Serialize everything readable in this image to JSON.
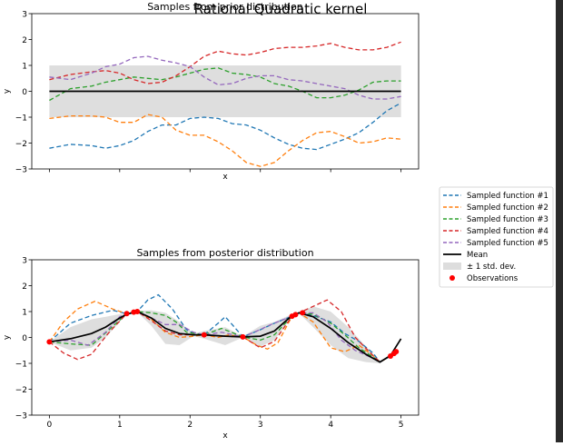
{
  "suptitle": "Rational Quadratic kernel",
  "legend": {
    "placement": "right, between panels",
    "entries": [
      {
        "label": "Sampled function #1",
        "kind": "dashed",
        "color": "#1f77b4"
      },
      {
        "label": "Sampled function #2",
        "kind": "dashed",
        "color": "#ff7f0e"
      },
      {
        "label": "Sampled function #3",
        "kind": "dashed",
        "color": "#2ca02c"
      },
      {
        "label": "Sampled function #4",
        "kind": "dashed",
        "color": "#d62728"
      },
      {
        "label": "Sampled function #5",
        "kind": "dashed",
        "color": "#9467bd"
      },
      {
        "label": "Mean",
        "kind": "solid",
        "color": "#000000"
      },
      {
        "label": "± 1 std. dev.",
        "kind": "band",
        "color": "#dddddd"
      },
      {
        "label": "Observations",
        "kind": "dot",
        "color": "#ff0000"
      }
    ]
  },
  "chart_data": [
    {
      "type": "line",
      "title": "Samples from prior distribution",
      "xlabel": "x",
      "ylabel": "y",
      "xlim": [
        -0.25,
        5.25
      ],
      "ylim": [
        -3,
        3
      ],
      "x_ticks": [
        0,
        1,
        2,
        3,
        4,
        5
      ],
      "x_tick_labels_shown": false,
      "y_ticks": [
        -3,
        -2,
        -1,
        0,
        1,
        2,
        3
      ],
      "grid": false,
      "mean": {
        "x": [
          0,
          5
        ],
        "y": [
          0,
          0
        ]
      },
      "std_band": {
        "x": [
          0,
          5
        ],
        "lower": [
          -1,
          -1
        ],
        "upper": [
          1,
          1
        ]
      },
      "series": [
        {
          "name": "Sampled function #1",
          "color": "#1f77b4",
          "x": [
            0,
            0.3,
            0.6,
            0.8,
            1,
            1.2,
            1.4,
            1.6,
            1.8,
            2,
            2.2,
            2.4,
            2.6,
            2.8,
            3,
            3.2,
            3.4,
            3.6,
            3.8,
            4,
            4.2,
            4.4,
            4.6,
            4.8,
            5
          ],
          "y": [
            -2.2,
            -2.05,
            -2.1,
            -2.2,
            -2.1,
            -1.9,
            -1.55,
            -1.3,
            -1.3,
            -1.05,
            -1.0,
            -1.05,
            -1.25,
            -1.3,
            -1.5,
            -1.8,
            -2.05,
            -2.2,
            -2.25,
            -2.05,
            -1.85,
            -1.6,
            -1.2,
            -0.75,
            -0.45
          ]
        },
        {
          "name": "Sampled function #2",
          "color": "#ff7f0e",
          "x": [
            0,
            0.3,
            0.6,
            0.8,
            1,
            1.2,
            1.4,
            1.6,
            1.8,
            2,
            2.2,
            2.4,
            2.6,
            2.8,
            3,
            3.2,
            3.4,
            3.6,
            3.8,
            4,
            4.2,
            4.4,
            4.6,
            4.8,
            5
          ],
          "y": [
            -1.05,
            -0.95,
            -0.95,
            -1.0,
            -1.2,
            -1.2,
            -0.9,
            -1.0,
            -1.5,
            -1.7,
            -1.7,
            -1.95,
            -2.3,
            -2.75,
            -2.9,
            -2.75,
            -2.3,
            -1.9,
            -1.6,
            -1.55,
            -1.75,
            -2.0,
            -1.95,
            -1.8,
            -1.85
          ]
        },
        {
          "name": "Sampled function #3",
          "color": "#2ca02c",
          "x": [
            0,
            0.3,
            0.6,
            0.8,
            1,
            1.2,
            1.4,
            1.6,
            1.8,
            2,
            2.2,
            2.4,
            2.6,
            2.8,
            3,
            3.2,
            3.4,
            3.6,
            3.8,
            4,
            4.2,
            4.4,
            4.6,
            4.8,
            5
          ],
          "y": [
            -0.35,
            0.1,
            0.2,
            0.35,
            0.45,
            0.55,
            0.5,
            0.45,
            0.55,
            0.7,
            0.85,
            0.9,
            0.7,
            0.65,
            0.55,
            0.3,
            0.2,
            0.0,
            -0.25,
            -0.25,
            -0.15,
            0.05,
            0.35,
            0.4,
            0.4
          ]
        },
        {
          "name": "Sampled function #4",
          "color": "#d62728",
          "x": [
            0,
            0.3,
            0.6,
            0.8,
            1,
            1.2,
            1.4,
            1.6,
            1.8,
            2,
            2.2,
            2.4,
            2.6,
            2.8,
            3,
            3.2,
            3.4,
            3.6,
            3.8,
            4,
            4.2,
            4.4,
            4.6,
            4.8,
            5
          ],
          "y": [
            0.45,
            0.65,
            0.75,
            0.8,
            0.7,
            0.45,
            0.3,
            0.35,
            0.6,
            0.95,
            1.35,
            1.55,
            1.45,
            1.4,
            1.5,
            1.65,
            1.7,
            1.7,
            1.75,
            1.85,
            1.7,
            1.6,
            1.6,
            1.7,
            1.9
          ]
        },
        {
          "name": "Sampled function #5",
          "color": "#9467bd",
          "x": [
            0,
            0.3,
            0.6,
            0.8,
            1,
            1.2,
            1.4,
            1.6,
            1.8,
            2,
            2.2,
            2.4,
            2.6,
            2.8,
            3,
            3.2,
            3.4,
            3.6,
            3.8,
            4,
            4.2,
            4.4,
            4.6,
            4.8,
            5
          ],
          "y": [
            0.55,
            0.45,
            0.7,
            0.95,
            1.05,
            1.3,
            1.35,
            1.2,
            1.1,
            0.95,
            0.55,
            0.25,
            0.3,
            0.5,
            0.6,
            0.6,
            0.45,
            0.4,
            0.3,
            0.2,
            0.1,
            -0.15,
            -0.3,
            -0.3,
            -0.2
          ]
        }
      ]
    },
    {
      "type": "line",
      "title": "Samples from posterior distribution",
      "xlabel": "x",
      "ylabel": "y",
      "xlim": [
        -0.25,
        5.25
      ],
      "ylim": [
        -3,
        3
      ],
      "x_ticks": [
        0,
        1,
        2,
        3,
        4,
        5
      ],
      "y_ticks": [
        -3,
        -2,
        -1,
        0,
        1,
        2,
        3
      ],
      "grid": false,
      "mean": {
        "x": [
          0,
          0.3,
          0.6,
          0.8,
          1.0,
          1.1,
          1.25,
          1.45,
          1.65,
          1.85,
          2.05,
          2.2,
          2.5,
          2.75,
          3.0,
          3.2,
          3.45,
          3.55,
          3.75,
          4.0,
          4.25,
          4.5,
          4.7,
          4.85,
          5.0
        ],
        "y": [
          -0.17,
          -0.05,
          0.15,
          0.4,
          0.75,
          0.9,
          1.0,
          0.75,
          0.35,
          0.15,
          0.1,
          0.1,
          0.05,
          0.02,
          0.05,
          0.25,
          0.85,
          0.95,
          0.8,
          0.35,
          -0.2,
          -0.65,
          -0.95,
          -0.7,
          -0.05
        ]
      },
      "std_band": {
        "x": [
          0,
          0.3,
          0.6,
          0.8,
          1.0,
          1.1,
          1.25,
          1.45,
          1.65,
          1.85,
          2.05,
          2.2,
          2.5,
          2.75,
          3.0,
          3.2,
          3.45,
          3.55,
          3.75,
          4.0,
          4.25,
          4.5,
          4.7,
          4.85,
          5.0
        ],
        "lower": [
          -0.17,
          -0.5,
          -0.4,
          0.0,
          0.6,
          0.88,
          0.98,
          0.45,
          -0.25,
          -0.3,
          0.05,
          -0.05,
          -0.3,
          0.0,
          -0.35,
          -0.1,
          0.8,
          0.93,
          0.4,
          -0.3,
          -0.8,
          -0.95,
          -1.0,
          -0.72,
          -0.05
        ],
        "upper": [
          -0.17,
          0.4,
          0.7,
          0.8,
          0.9,
          0.92,
          1.02,
          1.05,
          0.95,
          0.6,
          0.15,
          0.25,
          0.4,
          0.04,
          0.45,
          0.6,
          0.9,
          0.97,
          1.2,
          1.0,
          0.4,
          -0.35,
          -0.9,
          -0.68,
          -0.05
        ]
      },
      "observations": {
        "x": [
          0.0,
          1.1,
          1.2,
          1.25,
          2.2,
          2.75,
          3.45,
          3.5,
          3.6,
          4.85,
          4.9,
          4.93
        ],
        "y": [
          -0.17,
          0.92,
          0.98,
          1.0,
          0.1,
          0.02,
          0.82,
          0.88,
          0.95,
          -0.72,
          -0.62,
          -0.55
        ]
      },
      "series": [
        {
          "name": "Sampled function #1",
          "color": "#1f77b4",
          "x": [
            0,
            0.3,
            0.6,
            0.9,
            1.1,
            1.25,
            1.4,
            1.55,
            1.75,
            1.95,
            2.1,
            2.2,
            2.4,
            2.5,
            2.6,
            2.75,
            3.0,
            3.2,
            3.45,
            3.55,
            3.75,
            4.0,
            4.2,
            4.4,
            4.6,
            4.7,
            4.85,
            4.93
          ],
          "y": [
            -0.17,
            0.55,
            0.85,
            1.05,
            0.92,
            1.0,
            1.45,
            1.65,
            1.1,
            0.3,
            0.1,
            0.1,
            0.55,
            0.8,
            0.5,
            0.02,
            0.3,
            0.55,
            0.82,
            0.95,
            0.85,
            0.6,
            0.15,
            -0.15,
            -0.6,
            -0.95,
            -0.72,
            -0.55
          ]
        },
        {
          "name": "Sampled function #2",
          "color": "#ff7f0e",
          "x": [
            0,
            0.2,
            0.4,
            0.65,
            0.9,
            1.1,
            1.25,
            1.45,
            1.65,
            1.85,
            2.05,
            2.2,
            2.4,
            2.55,
            2.75,
            2.95,
            3.1,
            3.25,
            3.45,
            3.55,
            3.75,
            4.0,
            4.2,
            4.4,
            4.6,
            4.7,
            4.85,
            4.93
          ],
          "y": [
            -0.17,
            0.6,
            1.1,
            1.4,
            1.1,
            0.92,
            1.0,
            0.7,
            0.2,
            0.0,
            0.05,
            0.1,
            0.0,
            0.1,
            0.02,
            -0.3,
            -0.45,
            -0.2,
            0.82,
            0.95,
            0.6,
            -0.4,
            -0.55,
            -0.3,
            -0.7,
            -0.95,
            -0.72,
            -0.55
          ]
        },
        {
          "name": "Sampled function #3",
          "color": "#2ca02c",
          "x": [
            0,
            0.3,
            0.6,
            0.85,
            1.1,
            1.25,
            1.45,
            1.65,
            1.8,
            1.95,
            2.2,
            2.45,
            2.75,
            3.0,
            3.2,
            3.45,
            3.55,
            3.75,
            4.0,
            4.2,
            4.4,
            4.6,
            4.7,
            4.85,
            4.93
          ],
          "y": [
            -0.17,
            -0.25,
            -0.3,
            0.3,
            0.92,
            1.0,
            0.95,
            0.85,
            0.6,
            0.2,
            0.1,
            0.35,
            0.02,
            -0.1,
            0.1,
            0.82,
            0.95,
            0.9,
            0.55,
            0.1,
            -0.4,
            -0.75,
            -0.95,
            -0.72,
            -0.55
          ]
        },
        {
          "name": "Sampled function #4",
          "color": "#d62728",
          "x": [
            0,
            0.2,
            0.4,
            0.6,
            0.85,
            1.1,
            1.25,
            1.45,
            1.65,
            1.85,
            2.05,
            2.2,
            2.45,
            2.75,
            3.0,
            3.2,
            3.45,
            3.55,
            3.75,
            3.95,
            4.15,
            4.35,
            4.6,
            4.7,
            4.85,
            4.93
          ],
          "y": [
            -0.17,
            -0.6,
            -0.85,
            -0.65,
            0.2,
            0.92,
            1.0,
            0.65,
            0.25,
            0.1,
            0.1,
            0.1,
            0.05,
            0.02,
            -0.4,
            -0.15,
            0.82,
            0.95,
            1.2,
            1.45,
            1.0,
            0.0,
            -0.7,
            -0.95,
            -0.72,
            -0.55
          ]
        },
        {
          "name": "Sampled function #5",
          "color": "#9467bd",
          "x": [
            0,
            0.3,
            0.55,
            0.8,
            1.0,
            1.1,
            1.25,
            1.45,
            1.65,
            1.85,
            2.05,
            2.2,
            2.45,
            2.75,
            2.95,
            3.15,
            3.45,
            3.55,
            3.75,
            3.95,
            4.15,
            4.35,
            4.6,
            4.7,
            4.85,
            4.93
          ],
          "y": [
            -0.17,
            -0.1,
            -0.3,
            0.2,
            0.8,
            0.92,
            1.0,
            0.75,
            0.5,
            0.5,
            0.2,
            0.1,
            0.2,
            0.02,
            0.25,
            0.5,
            0.82,
            0.95,
            0.95,
            0.6,
            -0.1,
            -0.5,
            -0.8,
            -0.95,
            -0.72,
            -0.55
          ]
        }
      ]
    }
  ]
}
